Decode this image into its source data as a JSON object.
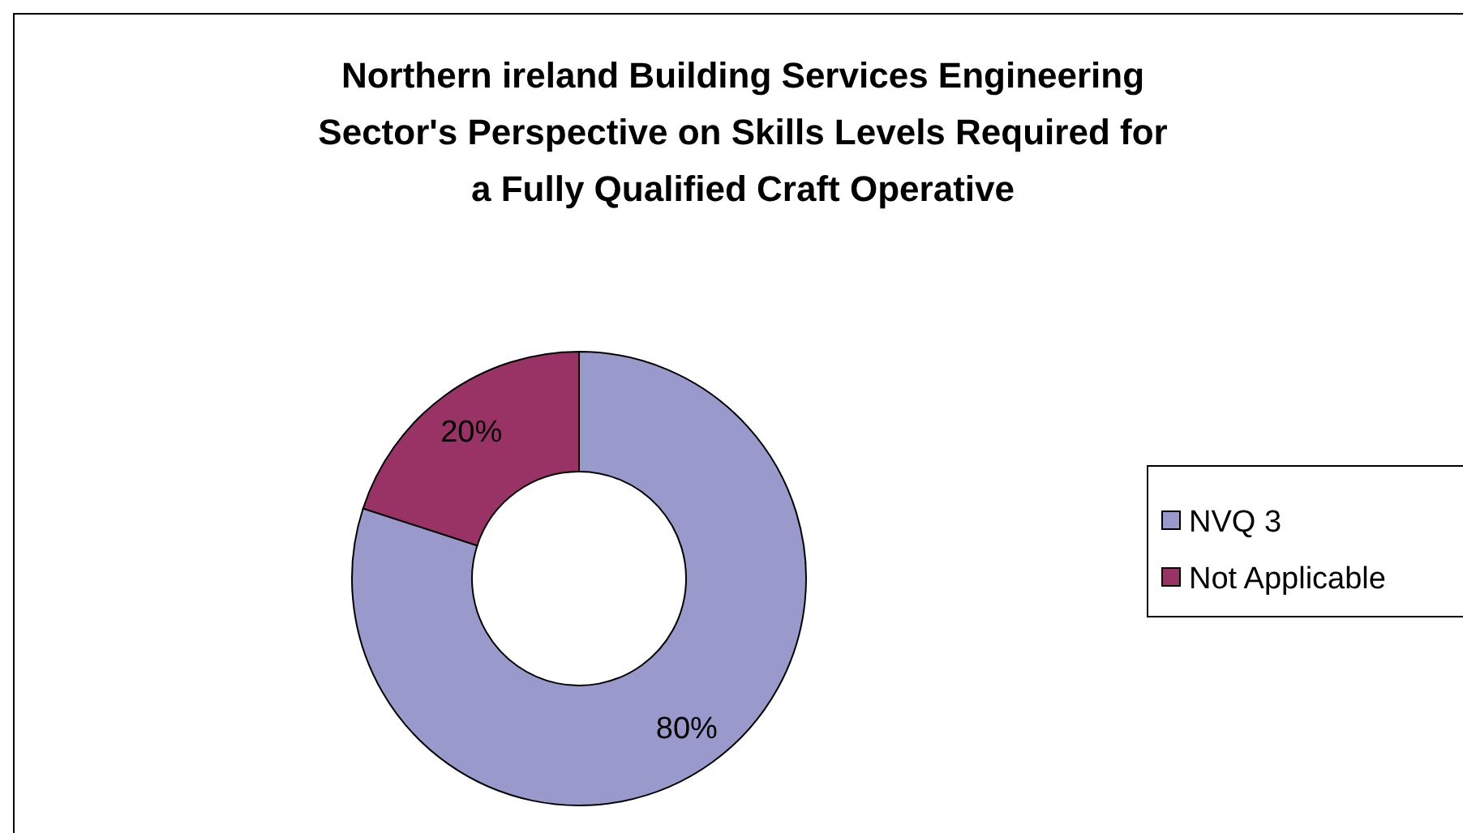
{
  "chart_data": {
    "type": "donut",
    "title": "Northern ireland Building Services Engineering Sector's Perspective on Skills Levels Required for a Fully Qualified Craft Operative",
    "categories": [
      "NVQ 3",
      "Not Applicable"
    ],
    "values": [
      80,
      20
    ],
    "colors": [
      "#9999cc",
      "#993366"
    ],
    "value_labels": [
      "80%",
      "20%"
    ],
    "legend": "right"
  }
}
